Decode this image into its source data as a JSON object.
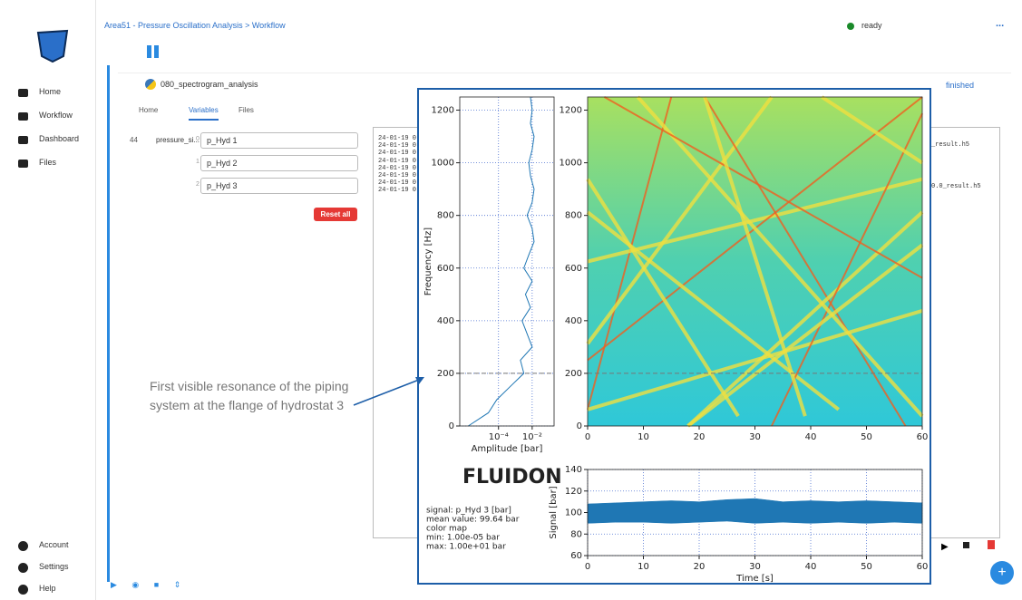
{
  "app": {
    "breadcrumb": "Area51 - Pressure Oscillation Analysis > Workflow",
    "status": "ready",
    "more": "...",
    "nav": [
      "Home",
      "Workflow",
      "Dashboard",
      "Files"
    ],
    "nav_bottom": [
      "Account",
      "Settings",
      "Help"
    ]
  },
  "node": {
    "name": "080_spectrogram_analysis",
    "state": "finished",
    "tabs": [
      "Home",
      "Variables",
      "Files"
    ],
    "active_tab": 1,
    "variables": {
      "index": "44",
      "name": "pressure_si...",
      "items": [
        {
          "index": "0",
          "value": "p_Hyd 1"
        },
        {
          "index": "1",
          "value": "p_Hyd 2"
        },
        {
          "index": "2",
          "value": "p_Hyd 3"
        }
      ]
    },
    "reset": "Reset all",
    "log_lines": [
      "24-01-19 0",
      "24-01-19 0",
      "24-01-19 0",
      "24-01-19 0",
      "24-01-19 0",
      "24-01-19 0",
      "24-01-19 0",
      "24-01-19 0"
    ],
    "files": [
      "_result.h5",
      "0.0_result.h5"
    ]
  },
  "annotation": "First visible resonance of the piping system at the flange of hydrostat 3",
  "logo": "FLUIDON",
  "info": [
    "signal: p_Hyd 3 [bar]",
    "mean value: 99.64 bar",
    "color map",
    "min: 1.00e-05 bar",
    "max: 1.00e+01 bar"
  ],
  "chart_data": [
    {
      "type": "line",
      "xlabel": "Amplitude [bar]",
      "ylabel": "Frequency [Hz]",
      "xscale": "log",
      "grid": true,
      "hline": 200,
      "xlim": [
        5e-07,
        0.2
      ],
      "xticks": [
        {
          "value": 0.0001,
          "label": "10⁻⁴"
        },
        {
          "value": 0.01,
          "label": "10⁻²"
        }
      ],
      "ylim": [
        0,
        1250
      ],
      "yticks": [
        0,
        200,
        400,
        600,
        800,
        1000,
        1200
      ],
      "series": [
        {
          "color": "#1f77b4",
          "x": [
            1.6e-06,
            2.5e-05,
            7.9e-05,
            0.0005,
            0.0032,
            0.002,
            0.01,
            0.005,
            0.0025,
            0.0079,
            0.004,
            0.01,
            0.0032,
            0.0063,
            0.013,
            0.01,
            0.005,
            0.01,
            0.013,
            0.0079,
            0.0063,
            0.01,
            0.013,
            0.0079,
            0.01,
            0.0079
          ],
          "values": [
            0,
            50,
            100,
            150,
            200,
            250,
            300,
            350,
            400,
            450,
            500,
            550,
            600,
            650,
            700,
            750,
            800,
            850,
            900,
            950,
            1000,
            1050,
            1100,
            1150,
            1200,
            1250
          ]
        }
      ]
    },
    {
      "type": "heatmap",
      "colormap": "jet",
      "hline": 200,
      "xlim": [
        0,
        60
      ],
      "xticks": [
        0,
        10,
        20,
        30,
        40,
        50,
        60
      ],
      "ylim": [
        0,
        1250
      ],
      "yticks": [
        0,
        200,
        400,
        600,
        800,
        1000,
        1200
      ]
    },
    {
      "type": "area",
      "xlabel": "Time [s]",
      "ylabel": "Signal [bar]",
      "grid": true,
      "xlim": [
        0,
        60
      ],
      "xticks": [
        0,
        10,
        20,
        30,
        40,
        50,
        60
      ],
      "ylim": [
        60,
        140
      ],
      "yticks": [
        60,
        80,
        100,
        120,
        140
      ],
      "x": [
        0,
        5,
        10,
        15,
        20,
        25,
        30,
        35,
        40,
        45,
        50,
        55,
        60
      ],
      "series": [
        {
          "color": "#1f77b4",
          "values": [
            108,
            109,
            110,
            111,
            110,
            112,
            113,
            110,
            111,
            110,
            111,
            110,
            109
          ]
        },
        {
          "color": "#1f77b4",
          "values": [
            90,
            91,
            91,
            90,
            91,
            92,
            90,
            91,
            90,
            91,
            90,
            91,
            90
          ]
        }
      ]
    }
  ]
}
